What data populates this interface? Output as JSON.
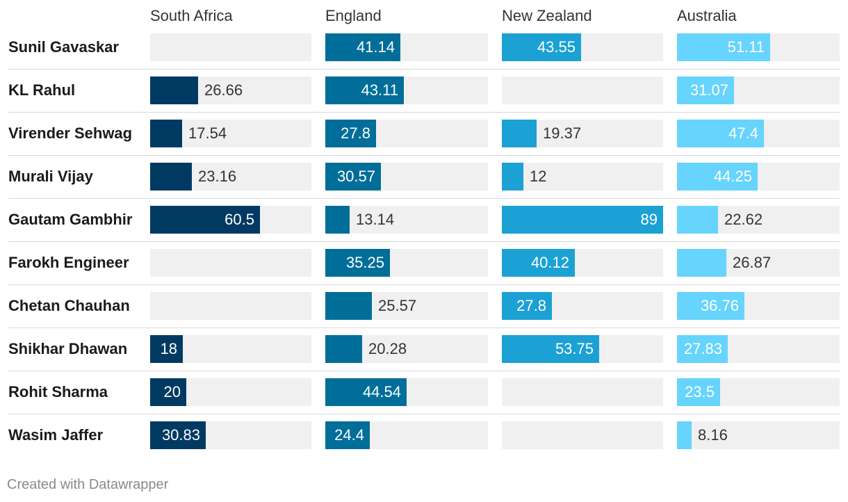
{
  "chart_data": {
    "type": "bar",
    "columns": [
      "South Africa",
      "England",
      "New Zealand",
      "Australia"
    ],
    "colors": [
      "#003a63",
      "#006e99",
      "#1ba1d4",
      "#66d4fc"
    ],
    "track_color": "#f0f0f0",
    "max_value": 89,
    "rows": [
      {
        "name": "Sunil Gavaskar",
        "values": [
          null,
          41.14,
          43.55,
          51.11
        ]
      },
      {
        "name": "KL Rahul",
        "values": [
          26.66,
          43.11,
          null,
          31.07
        ]
      },
      {
        "name": "Virender Sehwag",
        "values": [
          17.54,
          27.8,
          19.37,
          47.4
        ]
      },
      {
        "name": "Murali Vijay",
        "values": [
          23.16,
          30.57,
          12,
          44.25
        ]
      },
      {
        "name": "Gautam Gambhir",
        "values": [
          60.5,
          13.14,
          89,
          22.62
        ]
      },
      {
        "name": "Farokh Engineer",
        "values": [
          null,
          35.25,
          40.12,
          26.87
        ]
      },
      {
        "name": "Chetan Chauhan",
        "values": [
          null,
          25.57,
          27.8,
          36.76
        ]
      },
      {
        "name": "Shikhar Dhawan",
        "values": [
          18,
          20.28,
          53.75,
          27.83
        ]
      },
      {
        "name": "Rohit Sharma",
        "values": [
          20,
          44.54,
          null,
          23.5
        ]
      },
      {
        "name": "Wasim Jaffer",
        "values": [
          30.83,
          24.4,
          null,
          8.16
        ]
      }
    ]
  },
  "footer": {
    "credit": "Created with Datawrapper"
  }
}
